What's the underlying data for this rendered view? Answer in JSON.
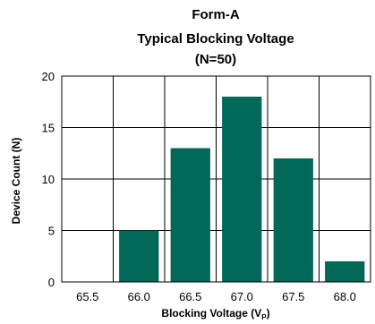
{
  "chart_data": {
    "type": "bar",
    "title_lines": [
      "Form-A",
      "Typical Blocking Voltage",
      "(N=50)"
    ],
    "categories": [
      "65.5",
      "66.0",
      "66.5",
      "67.0",
      "67.5",
      "68.0"
    ],
    "values": [
      0,
      5,
      13,
      18,
      12,
      2
    ],
    "xlabel_main": "Blocking Voltage (V",
    "xlabel_sub": "P",
    "xlabel_end": ")",
    "ylabel": "Device Count (N)",
    "ylim": [
      0,
      20
    ],
    "yticks": [
      0,
      5,
      10,
      15,
      20
    ],
    "grid": true,
    "bar_color": "#006857"
  }
}
